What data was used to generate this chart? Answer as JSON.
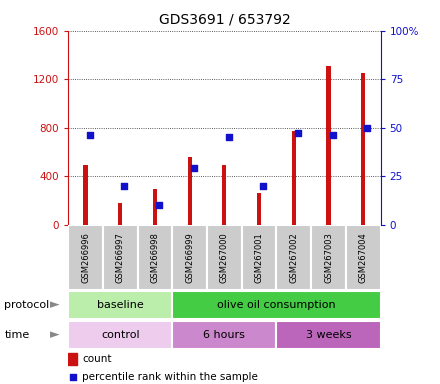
{
  "title": "GDS3691 / 653792",
  "samples": [
    "GSM266996",
    "GSM266997",
    "GSM266998",
    "GSM266999",
    "GSM267000",
    "GSM267001",
    "GSM267002",
    "GSM267003",
    "GSM267004"
  ],
  "counts": [
    490,
    175,
    290,
    560,
    490,
    265,
    770,
    1310,
    1255
  ],
  "percentiles": [
    46,
    20,
    10,
    29,
    45,
    20,
    47,
    46,
    50
  ],
  "left_ylim": [
    0,
    1600
  ],
  "right_ylim": [
    0,
    100
  ],
  "left_yticks": [
    0,
    400,
    800,
    1200,
    1600
  ],
  "right_yticks": [
    0,
    25,
    50,
    75,
    100
  ],
  "right_yticklabels": [
    "0",
    "25",
    "50",
    "75",
    "100%"
  ],
  "bar_color": "#cc1111",
  "dot_color": "#1111cc",
  "grid_color": "#222222",
  "protocol_groups": [
    {
      "label": "baseline",
      "start": 0,
      "end": 3,
      "color": "#bbeeaa"
    },
    {
      "label": "olive oil consumption",
      "start": 3,
      "end": 9,
      "color": "#44cc44"
    }
  ],
  "time_groups": [
    {
      "label": "control",
      "start": 0,
      "end": 3,
      "color": "#eeccee"
    },
    {
      "label": "6 hours",
      "start": 3,
      "end": 6,
      "color": "#cc88cc"
    },
    {
      "label": "3 weeks",
      "start": 6,
      "end": 9,
      "color": "#bb66bb"
    }
  ],
  "bg_color": "#ffffff",
  "tick_bg": "#cccccc"
}
